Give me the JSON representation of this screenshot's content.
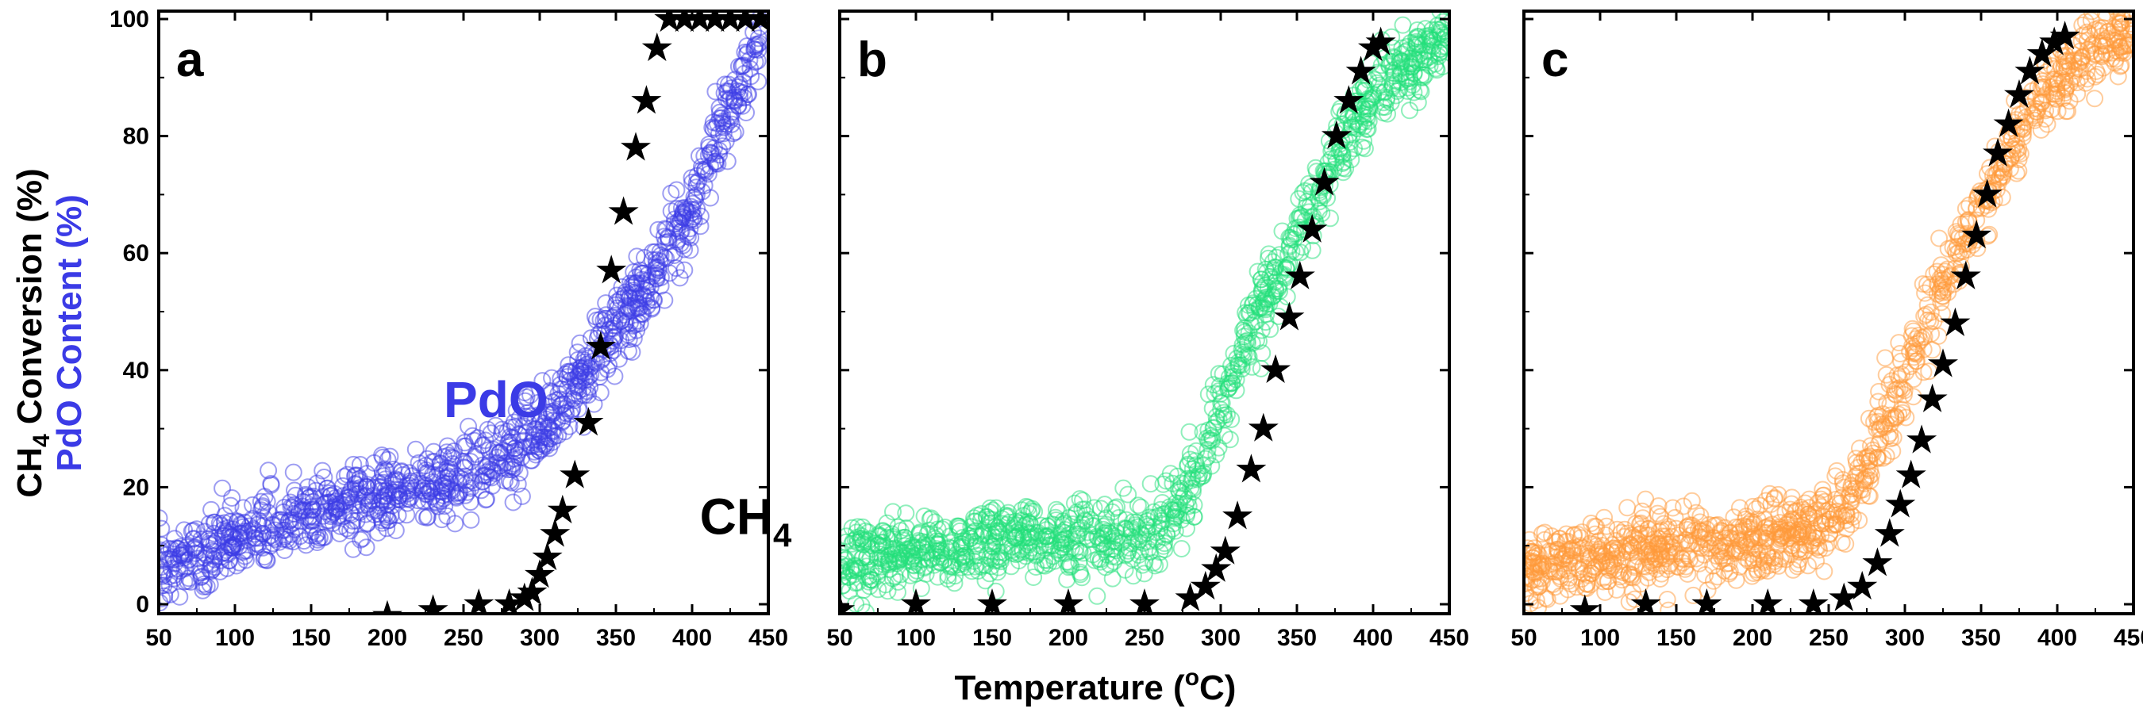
{
  "figure": {
    "x_axis_title": {
      "main": "Temperature (",
      "sup": "o",
      "unit": "C)"
    },
    "y_axis_title_black": {
      "pre": "CH",
      "sub": "4",
      "post": " Conversion (%)"
    },
    "y_axis_title_blue": "PdO Content (%)",
    "colors": {
      "axis": "#000000",
      "stars": "#000000",
      "blue_label": "#3b3be6",
      "panel_a": "#3b3be6",
      "panel_b": "#22e07a",
      "panel_c": "#ff9a3a"
    }
  },
  "chart_data": [
    {
      "panel": "a",
      "type": "scatter",
      "xlim": [
        50,
        450
      ],
      "ylim": [
        0,
        100
      ],
      "xticks": [
        50,
        100,
        150,
        200,
        250,
        300,
        350,
        400,
        450
      ],
      "yticks": [
        0,
        20,
        40,
        60,
        80,
        100
      ],
      "annotations": [
        {
          "text": "PdO",
          "x": 237,
          "y": 32,
          "color": "#3b3be6"
        },
        {
          "text": "CH",
          "sub": "4",
          "x": 405,
          "y": 12,
          "color": "#000000"
        }
      ],
      "series": [
        {
          "marker": "open-circle",
          "color": "#3b3be6",
          "x": [
            50,
            75,
            100,
            125,
            150,
            175,
            200,
            225,
            250,
            275,
            300,
            325,
            350,
            375,
            400,
            425,
            445
          ],
          "y": [
            6,
            8,
            11,
            13,
            15,
            17,
            18,
            20,
            22,
            25,
            30,
            38,
            47,
            56,
            68,
            85,
            97
          ]
        },
        {
          "marker": "star",
          "color": "#000000",
          "x": [
            200,
            230,
            260,
            280,
            290,
            295,
            300,
            305,
            310,
            315,
            323,
            332,
            340,
            347,
            355,
            363,
            370,
            377,
            385,
            395,
            405,
            415,
            425,
            435,
            445
          ],
          "y": [
            -2,
            -1,
            0,
            0,
            1,
            2,
            5,
            8,
            12,
            16,
            22,
            31,
            44,
            57,
            67,
            78,
            86,
            95,
            100,
            100,
            100,
            100,
            100,
            100,
            100
          ]
        }
      ]
    },
    {
      "panel": "b",
      "type": "scatter",
      "xlim": [
        50,
        450
      ],
      "ylim": [
        0,
        100
      ],
      "xticks": [
        50,
        100,
        150,
        200,
        250,
        300,
        350,
        400,
        450
      ],
      "yticks": [
        0,
        20,
        40,
        60,
        80,
        100
      ],
      "series": [
        {
          "marker": "open-circle",
          "color": "#22e07a",
          "x": [
            50,
            75,
            100,
            125,
            150,
            175,
            200,
            225,
            250,
            270,
            285,
            300,
            315,
            330,
            345,
            360,
            375,
            390,
            405,
            420,
            435,
            450
          ],
          "y": [
            7,
            8,
            9,
            10,
            10,
            11,
            11,
            11,
            12,
            15,
            22,
            33,
            44,
            53,
            60,
            68,
            76,
            83,
            88,
            91,
            94,
            96
          ]
        },
        {
          "marker": "star",
          "color": "#000000",
          "x": [
            50,
            100,
            150,
            200,
            250,
            280,
            290,
            297,
            303,
            311,
            320,
            328,
            336,
            345,
            352,
            360,
            368,
            376,
            384,
            392,
            400,
            405
          ],
          "y": [
            -1,
            0,
            0,
            0,
            0,
            1,
            3,
            6,
            9,
            15,
            23,
            30,
            40,
            49,
            56,
            64,
            72,
            80,
            86,
            91,
            95,
            96
          ]
        }
      ]
    },
    {
      "panel": "c",
      "type": "scatter",
      "xlim": [
        50,
        450
      ],
      "ylim": [
        0,
        100
      ],
      "xticks": [
        50,
        100,
        150,
        200,
        250,
        300,
        350,
        400,
        450
      ],
      "yticks": [
        0,
        20,
        40,
        60,
        80,
        100
      ],
      "series": [
        {
          "marker": "open-circle",
          "color": "#ff9a3a",
          "x": [
            50,
            75,
            100,
            125,
            150,
            175,
            200,
            225,
            250,
            265,
            280,
            295,
            310,
            325,
            340,
            355,
            370,
            385,
            400,
            415,
            430,
            450
          ],
          "y": [
            6,
            7,
            8,
            9,
            10,
            10,
            11,
            12,
            14,
            18,
            26,
            36,
            46,
            55,
            62,
            70,
            78,
            85,
            90,
            93,
            96,
            98
          ]
        },
        {
          "marker": "star",
          "color": "#000000",
          "x": [
            90,
            130,
            170,
            210,
            240,
            260,
            272,
            282,
            290,
            297,
            304,
            311,
            318,
            325,
            333,
            340,
            347,
            354,
            361,
            368,
            375,
            382,
            390,
            398,
            405
          ],
          "y": [
            -1,
            0,
            0,
            0,
            0,
            1,
            3,
            7,
            12,
            17,
            22,
            28,
            35,
            41,
            48,
            56,
            63,
            70,
            77,
            82,
            87,
            91,
            94,
            96,
            97
          ]
        }
      ]
    }
  ]
}
